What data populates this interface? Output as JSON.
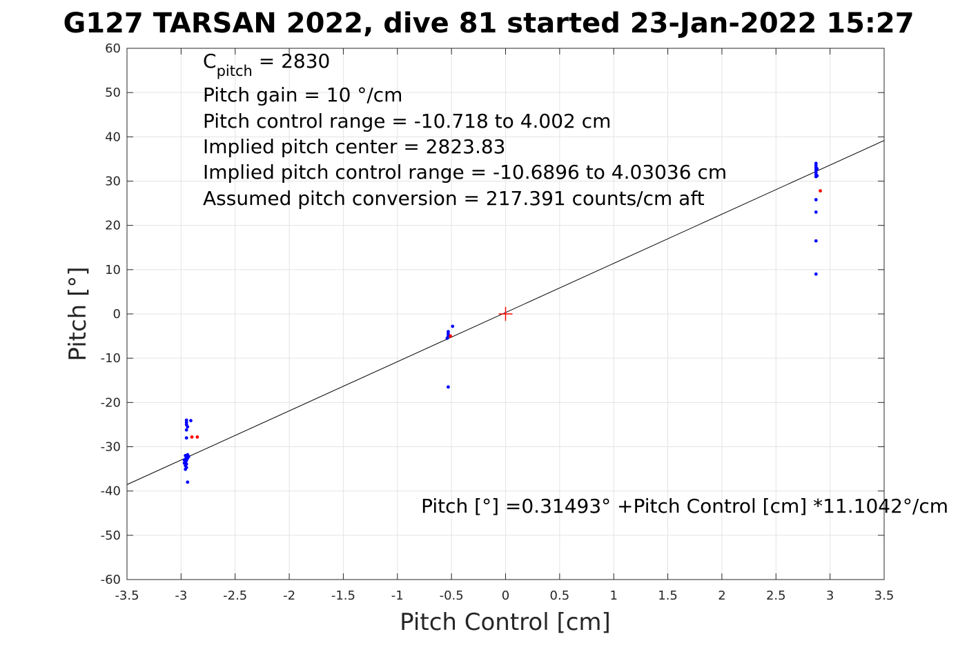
{
  "chart_data": {
    "type": "scatter",
    "title": "G127 TARSAN 2022, dive 81 started 23-Jan-2022 15:27",
    "xlabel": "Pitch Control [cm]",
    "ylabel": "Pitch [°]",
    "xlim": [
      -3.5,
      3.5
    ],
    "ylim": [
      -60,
      60
    ],
    "xticks": [
      -3.5,
      -3,
      -2.5,
      -2,
      -1.5,
      -1,
      -0.5,
      0,
      0.5,
      1,
      1.5,
      2,
      2.5,
      3,
      3.5
    ],
    "xtick_labels": [
      "-3.5",
      "-3",
      "-2.5",
      "-2",
      "-1.5",
      "-1",
      "-0.5",
      "0",
      "0.5",
      "1",
      "1.5",
      "2",
      "2.5",
      "3",
      "3.5"
    ],
    "yticks": [
      -60,
      -50,
      -40,
      -30,
      -20,
      -10,
      0,
      10,
      20,
      30,
      40,
      50,
      60
    ],
    "ytick_labels": [
      "-60",
      "-50",
      "-40",
      "-30",
      "-20",
      "-10",
      "0",
      "10",
      "20",
      "30",
      "40",
      "50",
      "60"
    ],
    "grid": true,
    "annotations": {
      "c_pitch_base": "C",
      "c_pitch_sub": "pitch",
      "c_pitch_value": " = 2830",
      "lines": [
        "Pitch gain = 10 °/cm",
        "Pitch control range = -10.718 to 4.002 cm",
        "Implied pitch center = 2823.83",
        "Implied pitch control range = -10.6896 to 4.03036 cm",
        "Assumed pitch conversion = 217.391 counts/cm aft"
      ],
      "fit_equation": "Pitch [°] =0.31493° +Pitch Control [cm] *11.1042°/cm"
    },
    "fit_line": {
      "intercept": 0.31493,
      "slope": 11.1042,
      "color": "#000000"
    },
    "center_marker": {
      "x": 0,
      "y": 0,
      "color": "#ff0000"
    },
    "series": [
      {
        "color": "#0000ff",
        "points": [
          [
            -2.95,
            -24
          ],
          [
            -2.95,
            -24.5
          ],
          [
            -2.95,
            -25
          ],
          [
            -2.94,
            -25.5
          ],
          [
            -2.95,
            -26.2
          ],
          [
            -2.91,
            -24.1
          ],
          [
            -2.95,
            -28
          ],
          [
            -2.96,
            -32
          ],
          [
            -2.95,
            -32.4
          ],
          [
            -2.96,
            -32.8
          ],
          [
            -2.95,
            -33.1
          ],
          [
            -2.96,
            -33.5
          ],
          [
            -2.95,
            -33.9
          ],
          [
            -2.96,
            -34.3
          ],
          [
            -2.95,
            -34.7
          ],
          [
            -2.96,
            -35.1
          ],
          [
            -2.94,
            -31.8
          ],
          [
            -2.93,
            -32.2
          ],
          [
            -2.94,
            -32.6
          ],
          [
            -2.97,
            -33.0
          ],
          [
            -2.97,
            -33.7
          ],
          [
            -2.94,
            -38
          ],
          [
            -0.53,
            -4
          ],
          [
            -0.53,
            -4.5
          ],
          [
            -0.53,
            -5
          ],
          [
            -0.54,
            -5.5
          ],
          [
            -0.49,
            -2.8
          ],
          [
            -0.53,
            -16.5
          ],
          [
            2.87,
            31
          ],
          [
            2.87,
            31.5
          ],
          [
            2.87,
            32
          ],
          [
            2.87,
            32.5
          ],
          [
            2.87,
            33
          ],
          [
            2.87,
            33.5
          ],
          [
            2.87,
            34
          ],
          [
            2.88,
            31.2
          ],
          [
            2.88,
            32.8
          ],
          [
            2.87,
            25.8
          ],
          [
            2.87,
            23
          ],
          [
            2.87,
            16.5
          ],
          [
            2.87,
            9
          ]
        ]
      },
      {
        "color": "#ff0000",
        "points": [
          [
            -2.9,
            -27.8
          ],
          [
            -2.85,
            -27.8
          ],
          [
            -0.51,
            -5
          ],
          [
            2.91,
            27.8
          ]
        ]
      }
    ]
  }
}
